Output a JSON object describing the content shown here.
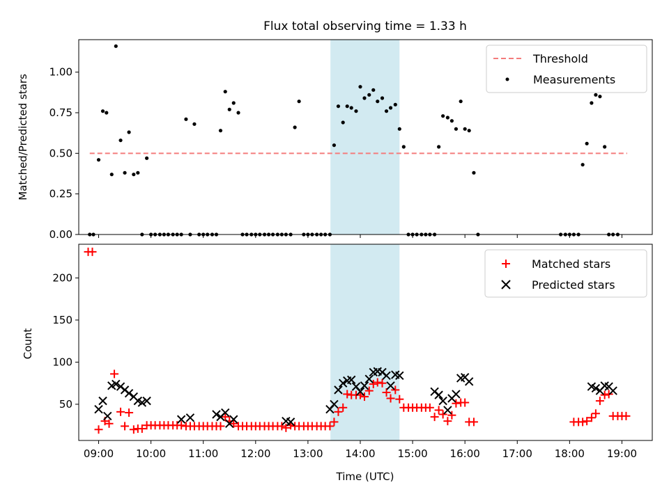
{
  "title": "Flux total observing time = 1.33 h",
  "colors": {
    "threshold": "#f47c7c",
    "matched": "#ff0000",
    "predicted": "#000000",
    "measurement": "#000000",
    "span": "#add8e6"
  },
  "chart_data": [
    {
      "type": "scatter",
      "ylabel": "Matched/Predicted stars",
      "xlim": [
        8.62,
        19.58
      ],
      "ylim": [
        0,
        1.2
      ],
      "yticks": [
        0.0,
        0.25,
        0.5,
        0.75,
        1.0
      ],
      "ytick_labels": [
        "0.00",
        "0.25",
        "0.50",
        "0.75",
        "1.00"
      ],
      "legend_position": "top-right",
      "highlight_span": [
        13.43,
        14.75
      ],
      "threshold": {
        "name": "Threshold",
        "value": 0.5,
        "x_start": 8.83,
        "x_end": 19.1
      },
      "measurements": {
        "name": "Measurements",
        "points": [
          [
            8.83,
            0
          ],
          [
            8.9,
            0
          ],
          [
            9.0,
            0.46
          ],
          [
            9.08,
            0.76
          ],
          [
            9.15,
            0.75
          ],
          [
            9.25,
            0.37
          ],
          [
            9.33,
            1.16
          ],
          [
            9.42,
            0.58
          ],
          [
            9.5,
            0.38
          ],
          [
            9.58,
            0.63
          ],
          [
            9.67,
            0.37
          ],
          [
            9.75,
            0.38
          ],
          [
            9.83,
            0
          ],
          [
            9.92,
            0.47
          ],
          [
            10.0,
            0
          ],
          [
            10.08,
            0
          ],
          [
            10.17,
            0
          ],
          [
            10.25,
            0
          ],
          [
            10.33,
            0
          ],
          [
            10.42,
            0
          ],
          [
            10.5,
            0
          ],
          [
            10.58,
            0
          ],
          [
            10.67,
            0.71
          ],
          [
            10.75,
            0
          ],
          [
            10.83,
            0.68
          ],
          [
            10.92,
            0
          ],
          [
            11.0,
            0
          ],
          [
            11.08,
            0
          ],
          [
            11.17,
            0
          ],
          [
            11.25,
            0
          ],
          [
            11.33,
            0.64
          ],
          [
            11.42,
            0.88
          ],
          [
            11.5,
            0.77
          ],
          [
            11.58,
            0.81
          ],
          [
            11.67,
            0.75
          ],
          [
            11.75,
            0
          ],
          [
            11.83,
            0
          ],
          [
            11.92,
            0
          ],
          [
            12.0,
            0
          ],
          [
            12.08,
            0
          ],
          [
            12.17,
            0
          ],
          [
            12.25,
            0
          ],
          [
            12.33,
            0
          ],
          [
            12.42,
            0
          ],
          [
            12.5,
            0
          ],
          [
            12.58,
            0
          ],
          [
            12.67,
            0
          ],
          [
            12.75,
            0.66
          ],
          [
            12.83,
            0.82
          ],
          [
            12.92,
            0
          ],
          [
            13.0,
            0
          ],
          [
            13.08,
            0
          ],
          [
            13.17,
            0
          ],
          [
            13.25,
            0
          ],
          [
            13.33,
            0
          ],
          [
            13.42,
            0
          ],
          [
            13.5,
            0.55
          ],
          [
            13.58,
            0.79
          ],
          [
            13.67,
            0.69
          ],
          [
            13.75,
            0.79
          ],
          [
            13.83,
            0.78
          ],
          [
            13.92,
            0.76
          ],
          [
            14.0,
            0.91
          ],
          [
            14.08,
            0.84
          ],
          [
            14.17,
            0.86
          ],
          [
            14.25,
            0.89
          ],
          [
            14.33,
            0.82
          ],
          [
            14.42,
            0.84
          ],
          [
            14.5,
            0.76
          ],
          [
            14.58,
            0.78
          ],
          [
            14.67,
            0.8
          ],
          [
            14.75,
            0.65
          ],
          [
            14.83,
            0.54
          ],
          [
            14.92,
            0
          ],
          [
            15.0,
            0
          ],
          [
            15.08,
            0
          ],
          [
            15.17,
            0
          ],
          [
            15.25,
            0
          ],
          [
            15.33,
            0
          ],
          [
            15.42,
            0
          ],
          [
            15.5,
            0.54
          ],
          [
            15.58,
            0.73
          ],
          [
            15.67,
            0.72
          ],
          [
            15.75,
            0.7
          ],
          [
            15.83,
            0.65
          ],
          [
            15.92,
            0.82
          ],
          [
            16.0,
            0.65
          ],
          [
            16.08,
            0.64
          ],
          [
            16.17,
            0.38
          ],
          [
            16.25,
            0
          ],
          [
            17.83,
            0
          ],
          [
            17.92,
            0
          ],
          [
            18.0,
            0
          ],
          [
            18.08,
            0
          ],
          [
            18.17,
            0
          ],
          [
            18.25,
            0.43
          ],
          [
            18.33,
            0.56
          ],
          [
            18.42,
            0.81
          ],
          [
            18.5,
            0.86
          ],
          [
            18.58,
            0.85
          ],
          [
            18.67,
            0.54
          ],
          [
            18.75,
            0
          ],
          [
            18.83,
            0
          ],
          [
            18.92,
            0
          ]
        ]
      }
    },
    {
      "type": "scatter",
      "ylabel": "Count",
      "xlabel": "Time (UTC)",
      "xlim": [
        8.62,
        19.58
      ],
      "ylim": [
        7,
        240
      ],
      "yticks": [
        50,
        100,
        150,
        200
      ],
      "ytick_labels": [
        "50",
        "100",
        "150",
        "200"
      ],
      "xticks": [
        9,
        10,
        11,
        12,
        13,
        14,
        15,
        16,
        17,
        18,
        19
      ],
      "xtick_labels": [
        "09:00",
        "10:00",
        "11:00",
        "12:00",
        "13:00",
        "14:00",
        "15:00",
        "16:00",
        "17:00",
        "18:00",
        "19:00"
      ],
      "legend_position": "top-right",
      "highlight_span": [
        13.43,
        14.75
      ],
      "series": [
        {
          "name": "Matched stars",
          "marker": "+",
          "points": [
            [
              8.8,
              231
            ],
            [
              8.88,
              231
            ],
            [
              9.0,
              20
            ],
            [
              9.12,
              30
            ],
            [
              9.2,
              27
            ],
            [
              9.3,
              86
            ],
            [
              9.42,
              41
            ],
            [
              9.5,
              24
            ],
            [
              9.58,
              40
            ],
            [
              9.67,
              20
            ],
            [
              9.75,
              21
            ],
            [
              9.83,
              21
            ],
            [
              9.92,
              25
            ],
            [
              10.0,
              25
            ],
            [
              10.08,
              25
            ],
            [
              10.17,
              25
            ],
            [
              10.25,
              25
            ],
            [
              10.33,
              25
            ],
            [
              10.42,
              25
            ],
            [
              10.5,
              25
            ],
            [
              10.58,
              25
            ],
            [
              10.67,
              24
            ],
            [
              10.75,
              24
            ],
            [
              10.83,
              24
            ],
            [
              10.92,
              24
            ],
            [
              11.0,
              24
            ],
            [
              11.08,
              24
            ],
            [
              11.17,
              24
            ],
            [
              11.25,
              24
            ],
            [
              11.33,
              24
            ],
            [
              11.42,
              35
            ],
            [
              11.5,
              30
            ],
            [
              11.58,
              27
            ],
            [
              11.67,
              24
            ],
            [
              11.75,
              24
            ],
            [
              11.83,
              24
            ],
            [
              11.92,
              24
            ],
            [
              12.0,
              24
            ],
            [
              12.08,
              24
            ],
            [
              12.17,
              24
            ],
            [
              12.25,
              24
            ],
            [
              12.33,
              24
            ],
            [
              12.42,
              24
            ],
            [
              12.5,
              24
            ],
            [
              12.58,
              22
            ],
            [
              12.67,
              25
            ],
            [
              12.75,
              24
            ],
            [
              12.83,
              24
            ],
            [
              12.92,
              24
            ],
            [
              13.0,
              24
            ],
            [
              13.08,
              24
            ],
            [
              13.17,
              24
            ],
            [
              13.25,
              24
            ],
            [
              13.33,
              24
            ],
            [
              13.42,
              24
            ],
            [
              13.5,
              29
            ],
            [
              13.58,
              41
            ],
            [
              13.67,
              46
            ],
            [
              13.75,
              62
            ],
            [
              13.83,
              61
            ],
            [
              13.92,
              61
            ],
            [
              14.0,
              61
            ],
            [
              14.08,
              59
            ],
            [
              14.17,
              66
            ],
            [
              14.25,
              74
            ],
            [
              14.33,
              76
            ],
            [
              14.42,
              75
            ],
            [
              14.5,
              64
            ],
            [
              14.58,
              57
            ],
            [
              14.67,
              67
            ],
            [
              14.75,
              56
            ],
            [
              14.83,
              46
            ],
            [
              14.92,
              46
            ],
            [
              15.0,
              46
            ],
            [
              15.08,
              46
            ],
            [
              15.17,
              46
            ],
            [
              15.25,
              46
            ],
            [
              15.33,
              46
            ],
            [
              15.42,
              35
            ],
            [
              15.5,
              43
            ],
            [
              15.58,
              38
            ],
            [
              15.67,
              30
            ],
            [
              15.75,
              37
            ],
            [
              15.83,
              51
            ],
            [
              15.92,
              52
            ],
            [
              16.0,
              52
            ],
            [
              16.08,
              29
            ],
            [
              16.17,
              29
            ],
            [
              18.08,
              29
            ],
            [
              18.17,
              29
            ],
            [
              18.25,
              29
            ],
            [
              18.33,
              30
            ],
            [
              18.42,
              34
            ],
            [
              18.5,
              39
            ],
            [
              18.58,
              54
            ],
            [
              18.67,
              61
            ],
            [
              18.75,
              62
            ],
            [
              18.83,
              36
            ],
            [
              18.92,
              36
            ],
            [
              19.0,
              36
            ],
            [
              19.08,
              36
            ]
          ]
        },
        {
          "name": "Predicted stars",
          "marker": "x",
          "points": [
            [
              9.0,
              44
            ],
            [
              9.08,
              54
            ],
            [
              9.17,
              36
            ],
            [
              9.25,
              72
            ],
            [
              9.33,
              74
            ],
            [
              9.42,
              71
            ],
            [
              9.5,
              67
            ],
            [
              9.58,
              63
            ],
            [
              9.67,
              59
            ],
            [
              9.75,
              54
            ],
            [
              9.83,
              52
            ],
            [
              9.92,
              54
            ],
            [
              10.58,
              32
            ],
            [
              10.75,
              34
            ],
            [
              11.25,
              38
            ],
            [
              11.33,
              35
            ],
            [
              11.42,
              40
            ],
            [
              11.5,
              27
            ],
            [
              11.58,
              32
            ],
            [
              12.58,
              30
            ],
            [
              12.67,
              29
            ],
            [
              13.42,
              44
            ],
            [
              13.5,
              50
            ],
            [
              13.58,
              67
            ],
            [
              13.67,
              75
            ],
            [
              13.75,
              78
            ],
            [
              13.83,
              79
            ],
            [
              13.92,
              71
            ],
            [
              14.0,
              65
            ],
            [
              14.08,
              72
            ],
            [
              14.17,
              80
            ],
            [
              14.25,
              88
            ],
            [
              14.33,
              89
            ],
            [
              14.42,
              88
            ],
            [
              14.5,
              84
            ],
            [
              14.58,
              72
            ],
            [
              14.67,
              85
            ],
            [
              14.75,
              84
            ],
            [
              15.42,
              65
            ],
            [
              15.5,
              61
            ],
            [
              15.58,
              54
            ],
            [
              15.67,
              43
            ],
            [
              15.75,
              57
            ],
            [
              15.83,
              62
            ],
            [
              15.92,
              81
            ],
            [
              16.0,
              82
            ],
            [
              16.08,
              77
            ],
            [
              18.42,
              71
            ],
            [
              18.5,
              69
            ],
            [
              18.58,
              66
            ],
            [
              18.67,
              72
            ],
            [
              18.75,
              71
            ],
            [
              18.83,
              66
            ]
          ]
        }
      ]
    }
  ]
}
